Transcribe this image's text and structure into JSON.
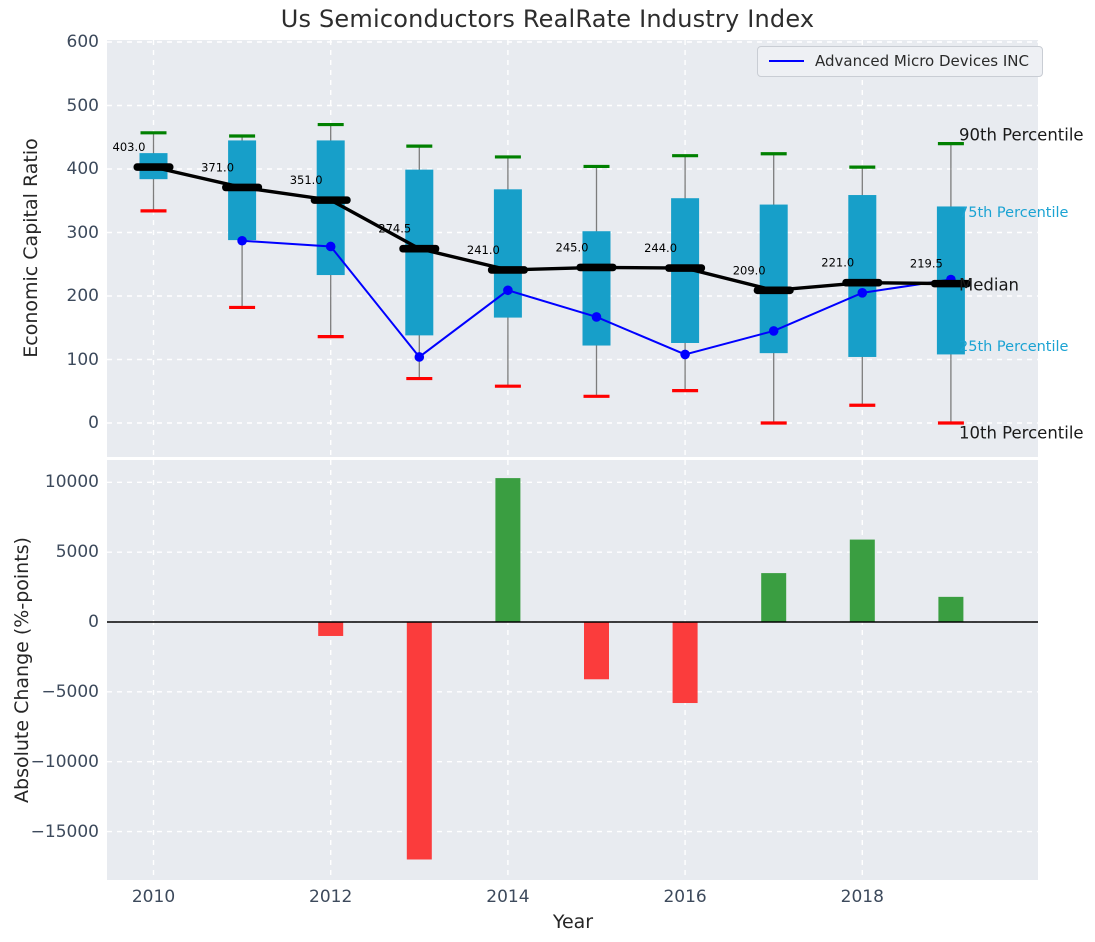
{
  "title": "Us Semiconductors RealRate Industry Index",
  "legend": {
    "label": "Advanced Micro Devices INC"
  },
  "colors": {
    "plot_bg": "#e8ebf0",
    "grid": "#ffffff",
    "box": "#179fc9",
    "whisker": "#7c7c7c",
    "cap_top": "#008000",
    "cap_bottom": "#ff0000",
    "median": "#000000",
    "amd_line": "#0000ff",
    "bar_positive": "#3a9e41",
    "bar_negative": "#fb3c3c",
    "annotation_black": "#1a1a1a",
    "annotation_cyan": "#1ba3d3",
    "tick_label": "#3d4a5c",
    "zero_line": "#000000"
  },
  "chart_data": [
    {
      "type": "box-percentile-timeseries",
      "title": "Us Semiconductors RealRate Industry Index",
      "ylabel": "Economic Capital Ratio",
      "ylim": [
        -50,
        603
      ],
      "grid": true,
      "legend_position": "upper right",
      "ytick_values": [
        600,
        500,
        400,
        300,
        200,
        100,
        0
      ],
      "ytick_labels": [
        "600",
        "500",
        "400",
        "300",
        "200",
        "100",
        "0"
      ],
      "years": [
        2010,
        2011,
        2012,
        2013,
        2014,
        2015,
        2016,
        2017,
        2018,
        2019
      ],
      "median": [
        403.0,
        371.0,
        351.0,
        274.5,
        241.0,
        245.0,
        244.0,
        209.0,
        221.0,
        219.5
      ],
      "median_labels": [
        "403.0",
        "371.0",
        "351.0",
        "274.5",
        "241.0",
        "245.0",
        "244.0",
        "209.0",
        "221.0",
        "219.5"
      ],
      "p90": [
        457,
        452,
        470,
        436,
        419,
        404,
        421,
        424,
        403,
        440
      ],
      "p75": [
        425,
        445,
        445,
        399,
        368,
        302,
        354,
        344,
        359,
        341
      ],
      "p25": [
        384,
        288,
        233,
        138,
        166,
        122,
        126,
        110,
        104,
        108
      ],
      "p10": [
        334,
        182,
        136,
        70,
        58,
        42,
        51,
        0,
        28,
        0
      ],
      "series": [
        {
          "name": "Advanced Micro Devices INC",
          "years": [
            2011,
            2012,
            2013,
            2014,
            2015,
            2016,
            2017,
            2018,
            2019
          ],
          "values": [
            287,
            278,
            104,
            209,
            167,
            108,
            145,
            205,
            226
          ]
        }
      ],
      "annotations": [
        {
          "text": "90th Percentile",
          "style": "black"
        },
        {
          "text": "75th Percentile",
          "style": "cyan"
        },
        {
          "text": "Median",
          "style": "black"
        },
        {
          "text": "25th Percentile",
          "style": "cyan"
        },
        {
          "text": "10th Percentile",
          "style": "black"
        }
      ]
    },
    {
      "type": "bar",
      "ylabel": "Absolute Change (%-points)",
      "xlabel": "Year",
      "grid": true,
      "ytick_values": [
        10000,
        5000,
        0,
        -5000,
        -10000,
        -15000
      ],
      "ytick_labels": [
        "10000",
        "5000",
        "0",
        "−5000",
        "−10000",
        "−15000"
      ],
      "xticks": [
        2010,
        2012,
        2014,
        2016,
        2018
      ],
      "years": [
        2010,
        2011,
        2012,
        2013,
        2014,
        2015,
        2016,
        2017,
        2018,
        2019
      ],
      "values": [
        0,
        0,
        -1000,
        -17000,
        10300,
        -4100,
        -5800,
        3500,
        5900,
        1800
      ]
    }
  ]
}
